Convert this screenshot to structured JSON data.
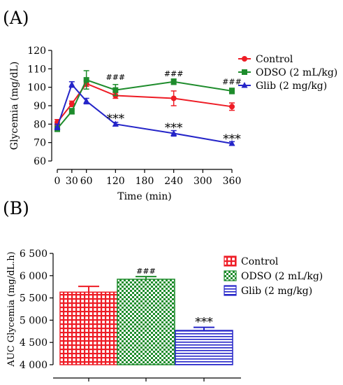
{
  "chart_data": [
    {
      "panel_label": "(A)",
      "type": "line",
      "xlabel": "Time (min)",
      "ylabel": "Glycemia (mg/dL)",
      "xlim": [
        0,
        360
      ],
      "ylim": [
        60,
        120
      ],
      "x_ticks": [
        "0",
        "30",
        "60",
        "120",
        "180",
        "240",
        "300",
        "360"
      ],
      "y_ticks": [
        "60",
        "70",
        "80",
        "90",
        "100",
        "110",
        "120"
      ],
      "x": [
        0,
        30,
        60,
        120,
        240,
        360
      ],
      "legend_position": "top-right",
      "series": [
        {
          "name": "Control",
          "color": "#ee1c25",
          "marker": "circle",
          "values": [
            81,
            91,
            102,
            95.5,
            94,
            89.5
          ],
          "errors": [
            1.5,
            1.5,
            1.5,
            1.5,
            4,
            2
          ]
        },
        {
          "name": "ODSO (2 mL/kg)",
          "color": "#1e8c2c",
          "marker": "square",
          "values": [
            77.5,
            87,
            104,
            98.5,
            103,
            98
          ],
          "errors": [
            1.5,
            1.5,
            5,
            3,
            1.5,
            1.5
          ]
        },
        {
          "name": "Glib (2 mg/kg)",
          "color": "#2525c8",
          "marker": "triangle",
          "values": [
            78.5,
            101.5,
            92.5,
            80,
            75,
            69.5
          ],
          "errors": [
            1.5,
            1.5,
            1.5,
            1,
            1.5,
            1
          ]
        }
      ],
      "annotations": [
        {
          "text": "###",
          "x": 120,
          "y": 104
        },
        {
          "text": "###",
          "x": 240,
          "y": 106
        },
        {
          "text": "###",
          "x": 360,
          "y": 101.5
        },
        {
          "text": "***",
          "x": 120,
          "y": 84
        },
        {
          "text": "***",
          "x": 240,
          "y": 79
        },
        {
          "text": "***",
          "x": 360,
          "y": 73
        }
      ]
    },
    {
      "panel_label": "(B)",
      "type": "bar",
      "ylabel": "AUC Glycemia (mg/dL.h)",
      "ylim": [
        4000,
        6500
      ],
      "y_ticks": [
        "4 000",
        "4 500",
        "5 000",
        "5 500",
        "6 000",
        "6 500"
      ],
      "categories": [
        "Control",
        "ODSO (2 mL/kg)",
        "Glib (2 mg/kg)"
      ],
      "values": [
        5630,
        5920,
        4770
      ],
      "errors": [
        130,
        60,
        70
      ],
      "colors": [
        "#ee1c25",
        "#1e8c2c",
        "#2525c8"
      ],
      "annotations": [
        "",
        "###",
        "***"
      ],
      "legend_position": "top-right"
    }
  ]
}
